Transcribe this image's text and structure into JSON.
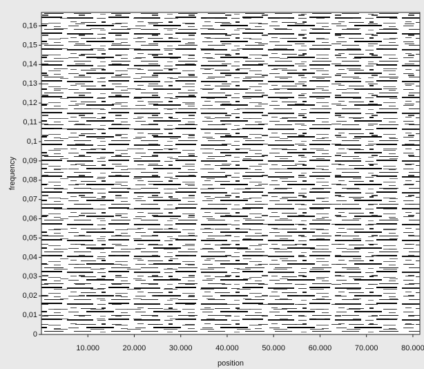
{
  "chart_data": {
    "type": "heatmap",
    "x_label": "position",
    "y_label": "frequency",
    "xlim": [
      0,
      81500
    ],
    "ylim": [
      0,
      0.167
    ],
    "xticks": [
      {
        "value": 10000,
        "label": "10.000"
      },
      {
        "value": 20000,
        "label": "20.000"
      },
      {
        "value": 30000,
        "label": "30.000"
      },
      {
        "value": 40000,
        "label": "40.000"
      },
      {
        "value": 50000,
        "label": "50.000"
      },
      {
        "value": 60000,
        "label": "60.000"
      },
      {
        "value": 70000,
        "label": "70.000"
      },
      {
        "value": 80000,
        "label": "80.000"
      }
    ],
    "yticks": [
      0,
      {
        "value": 0.01,
        "label": "0,01"
      },
      {
        "value": 0.02,
        "label": "0,02"
      },
      {
        "value": 0.03,
        "label": "0,03"
      },
      {
        "value": 0.04,
        "label": "0,04"
      },
      {
        "value": 0.05,
        "label": "0,05"
      },
      {
        "value": 0.06,
        "label": "0,06"
      },
      {
        "value": 0.07,
        "label": "0,07"
      },
      {
        "value": 0.08,
        "label": "0,08"
      },
      {
        "value": 0.09,
        "label": "0,09"
      },
      {
        "value": 0.1,
        "label": "0,1"
      },
      {
        "value": 0.11,
        "label": "0,11"
      },
      {
        "value": 0.12,
        "label": "0,12"
      },
      {
        "value": 0.13,
        "label": "0,13"
      },
      {
        "value": 0.14,
        "label": "0,14"
      },
      {
        "value": 0.15,
        "label": "0,15"
      },
      {
        "value": 0.16,
        "label": "0,16"
      }
    ]
  }
}
